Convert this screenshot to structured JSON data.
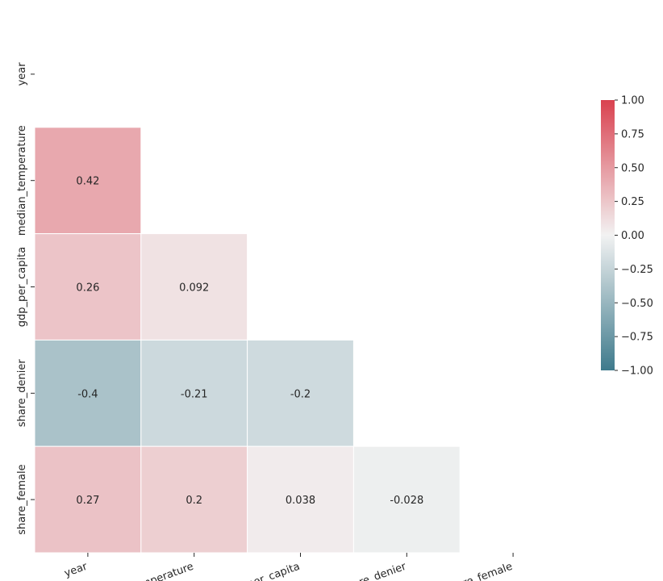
{
  "chart_data": {
    "type": "heatmap",
    "title": "",
    "variables": [
      "year",
      "median_temperature",
      "gdp_per_capita",
      "share_denier",
      "share_female"
    ],
    "mask": "upper_triangle_and_diagonal",
    "cells": [
      {
        "row": "median_temperature",
        "col": "year",
        "value": 0.42,
        "label": "0.42"
      },
      {
        "row": "gdp_per_capita",
        "col": "year",
        "value": 0.26,
        "label": "0.26"
      },
      {
        "row": "gdp_per_capita",
        "col": "median_temperature",
        "value": 0.092,
        "label": "0.092"
      },
      {
        "row": "share_denier",
        "col": "year",
        "value": -0.4,
        "label": "-0.4"
      },
      {
        "row": "share_denier",
        "col": "median_temperature",
        "value": -0.21,
        "label": "-0.21"
      },
      {
        "row": "share_denier",
        "col": "gdp_per_capita",
        "value": -0.2,
        "label": "-0.2"
      },
      {
        "row": "share_female",
        "col": "year",
        "value": 0.27,
        "label": "0.27"
      },
      {
        "row": "share_female",
        "col": "median_temperature",
        "value": 0.2,
        "label": "0.2"
      },
      {
        "row": "share_female",
        "col": "gdp_per_capita",
        "value": 0.038,
        "label": "0.038"
      },
      {
        "row": "share_female",
        "col": "share_denier",
        "value": -0.028,
        "label": "-0.028"
      }
    ],
    "colorbar": {
      "range": [
        -1.0,
        1.0
      ],
      "ticks": [
        1.0,
        0.75,
        0.5,
        0.25,
        0.0,
        -0.25,
        -0.5,
        -0.75,
        -1.0
      ],
      "tick_labels": [
        "1.00",
        "0.75",
        "0.50",
        "0.25",
        "0.00",
        "−0.25",
        "−0.50",
        "−0.75",
        "−1.00"
      ],
      "colors": {
        "negative": "#3e7a8c",
        "center": "#f2f2f2",
        "positive": "#d9414f"
      }
    },
    "grid": false,
    "legend": "colorbar-right"
  }
}
